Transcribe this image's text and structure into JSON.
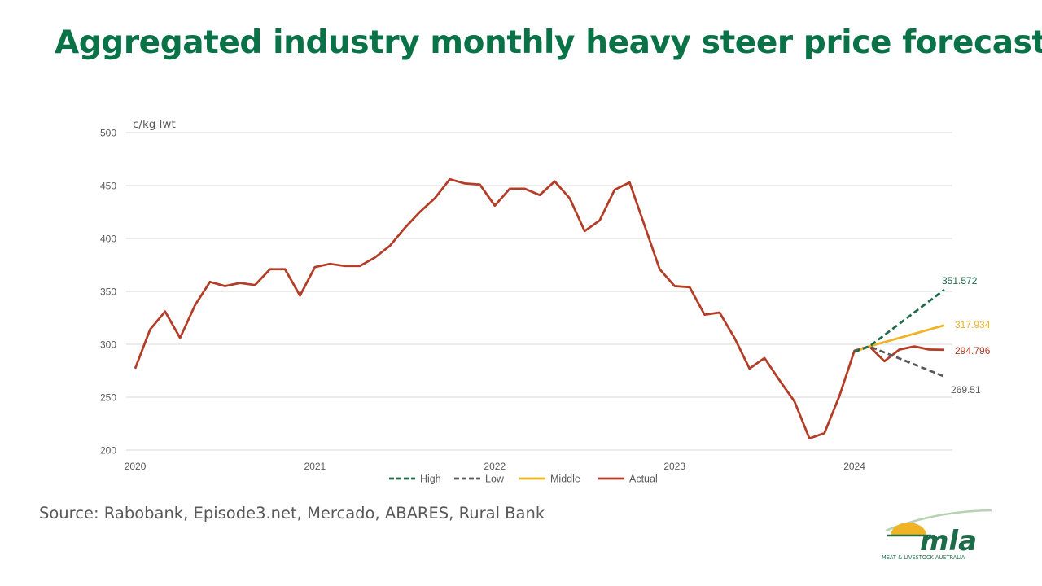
{
  "title": "Aggregated industry monthly heavy steer price forecast",
  "source": "Source: Rabobank, Episode3.net, Mercado, ABARES, Rural Bank",
  "logo": {
    "wordmark": "mla",
    "tagline": "MEAT & LIVESTOCK AUSTRALIA"
  },
  "colors": {
    "title": "#0a7247",
    "high": "#1e6b4a",
    "low": "#595959",
    "middle": "#f0b323",
    "actual": "#b33d26"
  },
  "chart_data": {
    "type": "line",
    "ylabel": "c/kg lwt",
    "ylim": [
      200,
      500
    ],
    "yticks": [
      "200",
      "250",
      "300",
      "350",
      "400",
      "450",
      "500"
    ],
    "xlim": [
      0,
      54
    ],
    "xticks": [
      {
        "label": "2020",
        "x": 0
      },
      {
        "label": "2021",
        "x": 12
      },
      {
        "label": "2022",
        "x": 24
      },
      {
        "label": "2023",
        "x": 36
      },
      {
        "label": "2024",
        "x": 48
      }
    ],
    "grid": true,
    "legend": "bottom",
    "series": [
      {
        "name": "High",
        "key": "high",
        "color": "#1e6b4a",
        "dash": true,
        "x": [
          48,
          49,
          54
        ],
        "values": [
          293,
          298,
          351.572
        ],
        "end_label": "351.572"
      },
      {
        "name": "Low",
        "key": "low",
        "color": "#595959",
        "dash": true,
        "x": [
          48,
          49,
          54
        ],
        "values": [
          293,
          298,
          269.51
        ],
        "end_label": "269.51"
      },
      {
        "name": "Middle",
        "key": "middle",
        "color": "#f0b323",
        "dash": false,
        "x": [
          48,
          49,
          54
        ],
        "values": [
          293,
          298,
          317.934
        ],
        "end_label": "317.934"
      },
      {
        "name": "Actual",
        "key": "actual",
        "color": "#b33d26",
        "dash": false,
        "x": [
          0,
          1,
          2,
          3,
          4,
          5,
          6,
          7,
          8,
          9,
          10,
          11,
          12,
          13,
          14,
          15,
          16,
          17,
          18,
          19,
          20,
          21,
          22,
          23,
          24,
          25,
          26,
          27,
          28,
          29,
          30,
          31,
          32,
          33,
          34,
          35,
          36,
          37,
          38,
          39,
          40,
          41,
          42,
          43,
          44,
          45,
          46,
          47,
          48,
          49,
          50,
          51,
          52,
          53,
          54
        ],
        "values": [
          277,
          314,
          331,
          306,
          337,
          359,
          355,
          358,
          356,
          371,
          371,
          346,
          373,
          376,
          374,
          374,
          382,
          393,
          410,
          425,
          438,
          456,
          452,
          451,
          431,
          447,
          447,
          441,
          454,
          438,
          407,
          417,
          446,
          453,
          412,
          371,
          355,
          354,
          328,
          330,
          306,
          277,
          287,
          266,
          246,
          211,
          216,
          251,
          294,
          298,
          284,
          295,
          298,
          295,
          294.796
        ],
        "end_label": "294.796"
      }
    ]
  }
}
